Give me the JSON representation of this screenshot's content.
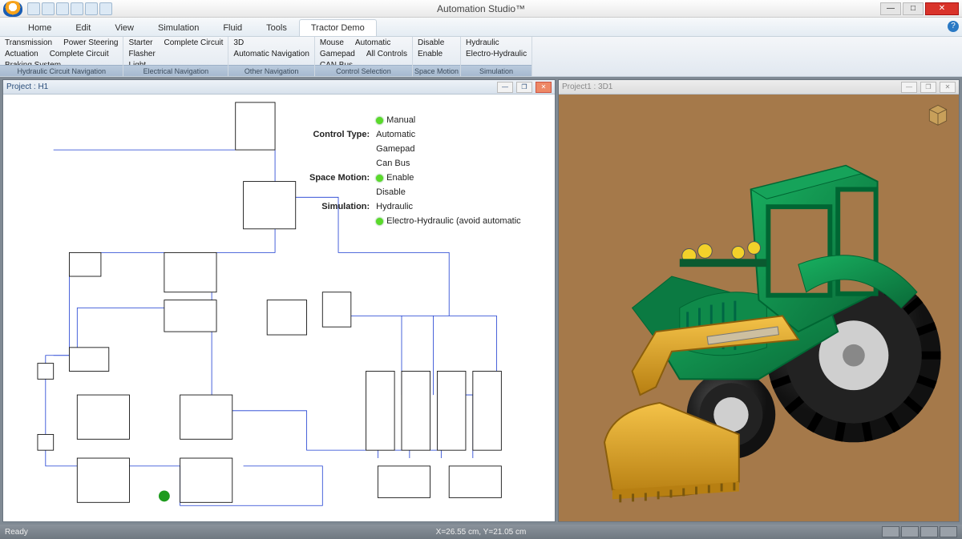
{
  "app": {
    "title": "Automation Studio™",
    "window_controls": {
      "min": "—",
      "max": "□",
      "close": "✕"
    }
  },
  "menu_tabs": [
    "Home",
    "Edit",
    "View",
    "Simulation",
    "Fluid",
    "Tools",
    "Tractor Demo"
  ],
  "active_menu_tab": 6,
  "ribbon_groups": [
    {
      "label": "Hydraulic Circuit Navigation",
      "cols": [
        [
          "Transmission",
          "Actuation",
          "Braking System"
        ],
        [
          "Power Steering",
          "Complete Circuit",
          ""
        ]
      ]
    },
    {
      "label": "Electrical Navigation",
      "cols": [
        [
          "Starter",
          "Flasher",
          "Light"
        ],
        [
          "Complete Circuit",
          "",
          ""
        ]
      ]
    },
    {
      "label": "Other Navigation",
      "cols": [
        [
          "3D",
          "Automatic Navigation",
          ""
        ]
      ]
    },
    {
      "label": "Control Selection",
      "cols": [
        [
          "Mouse",
          "Gamepad",
          "CAN Bus"
        ],
        [
          "Automatic",
          "All Controls",
          ""
        ]
      ]
    },
    {
      "label": "Space Motion",
      "cols": [
        [
          "Disable",
          "Enable",
          ""
        ]
      ]
    },
    {
      "label": "Simulation",
      "cols": [
        [
          "Hydraulic",
          "Electro-Hydraulic",
          ""
        ]
      ]
    }
  ],
  "panes": {
    "left": {
      "title": "Project : H1",
      "buttons": {
        "min": "—",
        "max": "❐",
        "close": "✕"
      },
      "control_block": {
        "rows": [
          {
            "label": "",
            "options": [
              {
                "text": "Manual",
                "dot": true
              }
            ]
          },
          {
            "label": "Control Type:",
            "options": [
              {
                "text": "Automatic"
              },
              {
                "text": "Gamepad"
              },
              {
                "text": "Can Bus"
              }
            ]
          },
          {
            "label": "Space Motion:",
            "options": [
              {
                "text": "Enable",
                "dot": true
              },
              {
                "text": "Disable"
              }
            ]
          },
          {
            "label": "Simulation:",
            "options": [
              {
                "text": "Hydraulic"
              },
              {
                "text": "Electro-Hydraulic (avoid automatic",
                "dot": true
              }
            ]
          }
        ]
      },
      "schematic": {
        "wire_color": "#1a3bd1",
        "line_color": "#111111",
        "background": "#ffffff"
      }
    },
    "right": {
      "title": "Project1 : 3D1",
      "buttons": {
        "min": "—",
        "max": "❐",
        "close": "✕"
      },
      "scene": {
        "background": "#a5794a",
        "tractor_body": "#0f8a4a",
        "tractor_body_dark": "#0b6436",
        "loader_color": "#e5a92b",
        "loader_dark": "#b77f12",
        "tire_color": "#2a2a2a",
        "tire_tread": "#111111",
        "hub_color": "#cfcfcf",
        "headlight": "#f2d12a",
        "cube_fill": "#c8a05a",
        "cube_stroke": "#6b5230"
      }
    }
  },
  "statusbar": {
    "left": "Ready",
    "coords": "X=26.55 cm, Y=21.05 cm"
  }
}
